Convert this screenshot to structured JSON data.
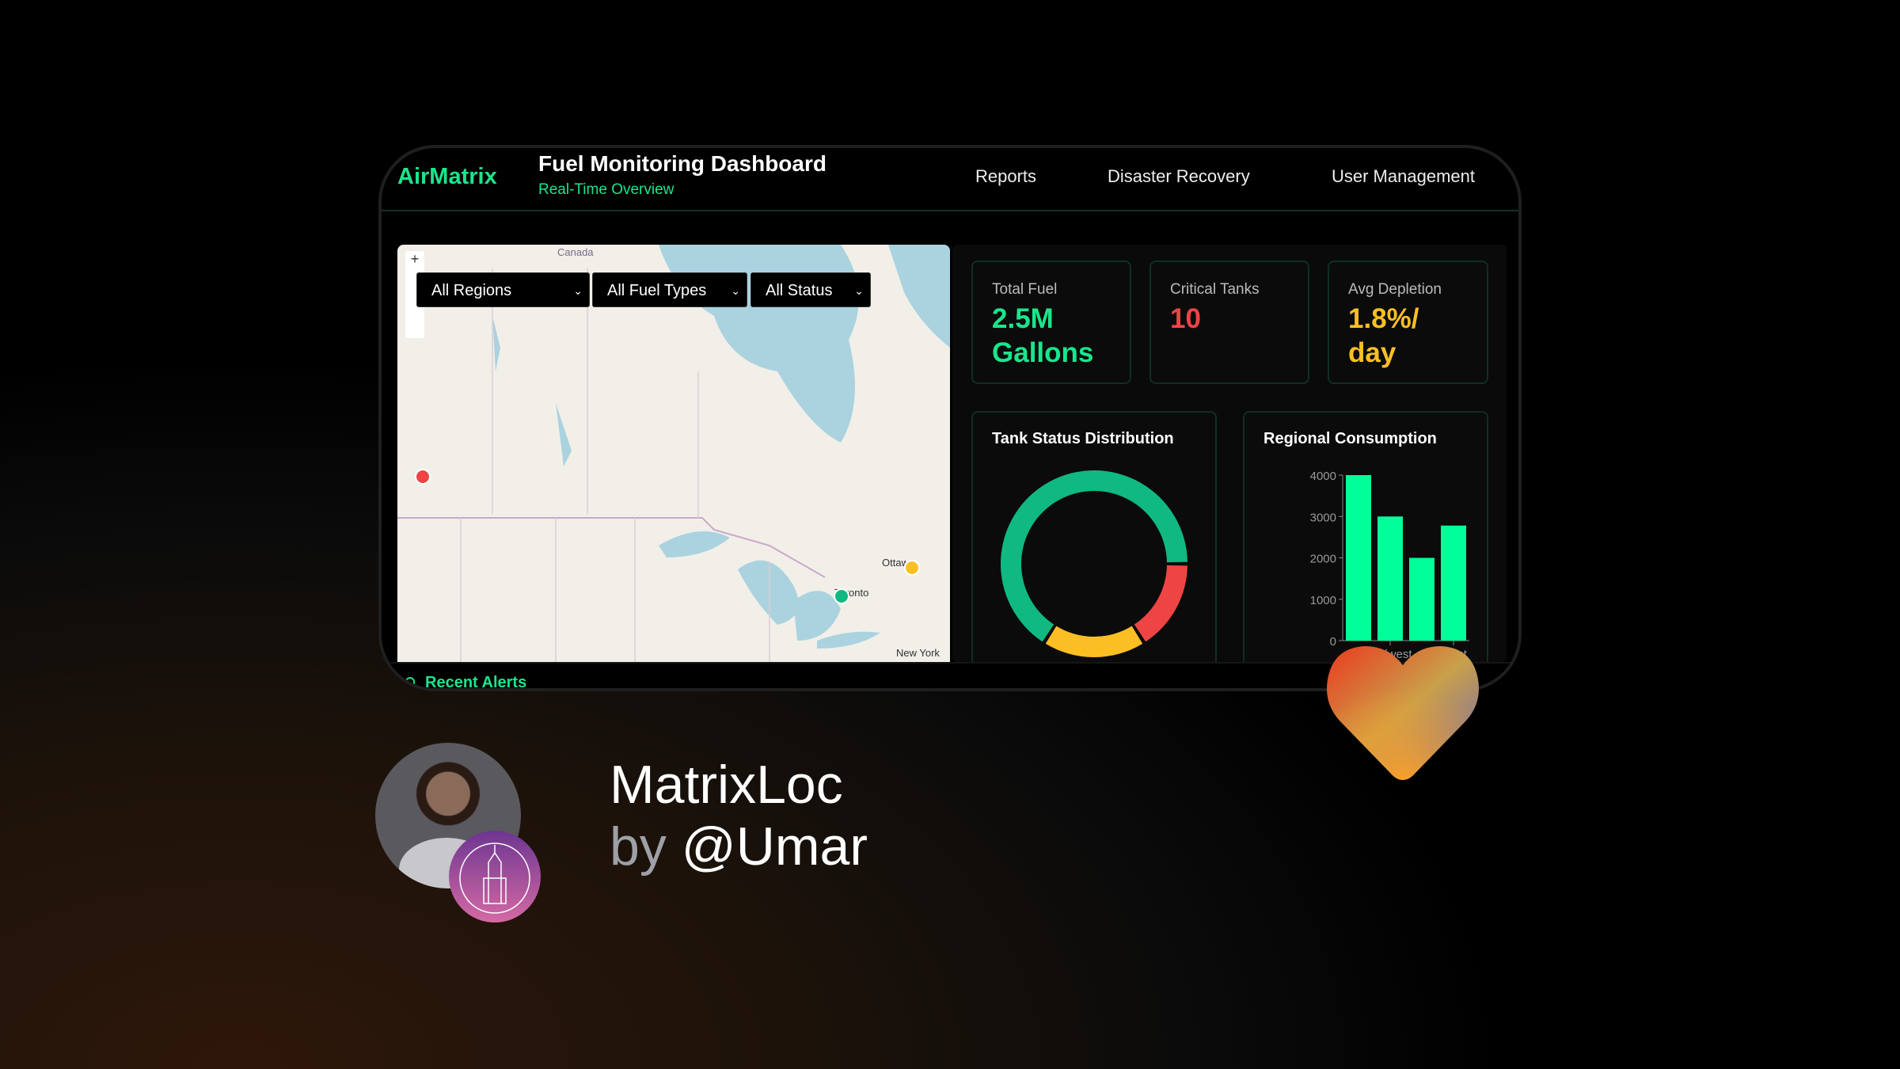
{
  "header": {
    "brand": "AirMatrix",
    "title": "Fuel Monitoring Dashboard",
    "subtitle": "Real-Time Overview",
    "nav": [
      "Reports",
      "Disaster Recovery",
      "User Management"
    ]
  },
  "map": {
    "filters": [
      "All Regions",
      "All Fuel Types",
      "All Status"
    ],
    "zoom_in": "+",
    "labels": {
      "country": "Canada",
      "city1": "Ottawa",
      "city2": "Toronto",
      "city3": "New York"
    },
    "markers": [
      {
        "status": "critical",
        "color": "#ef4444"
      },
      {
        "status": "warning",
        "color": "#fbbf24"
      },
      {
        "status": "healthy",
        "color": "#10b981"
      }
    ]
  },
  "stats": [
    {
      "label": "Total Fuel",
      "value": "2.5M Gallons",
      "color": "#19e68c"
    },
    {
      "label": "Critical Tanks",
      "value": "10",
      "color": "#ef4444"
    },
    {
      "label": "Avg Depletion",
      "value": "1.8%/ day",
      "color": "#fbbf24"
    }
  ],
  "chart_data": [
    {
      "type": "pie",
      "title": "Tank Status Distribution",
      "values": [
        66,
        16,
        18
      ],
      "colors": [
        "#10b981",
        "#ef4444",
        "#fbbf24"
      ]
    },
    {
      "type": "bar",
      "title": "Regional Consumption",
      "categories": [
        "",
        "Midwest",
        "",
        "West"
      ],
      "values": [
        4000,
        3000,
        2000,
        2780
      ],
      "yticks": [
        "0",
        "1000",
        "2000",
        "3000",
        "4000"
      ],
      "ylim": [
        0,
        4000
      ],
      "color": "#00ff99"
    }
  ],
  "footer": {
    "alerts": "Recent Alerts"
  },
  "promo": {
    "name": "MatrixLoc",
    "by": "by",
    "handle": "@Umar"
  }
}
